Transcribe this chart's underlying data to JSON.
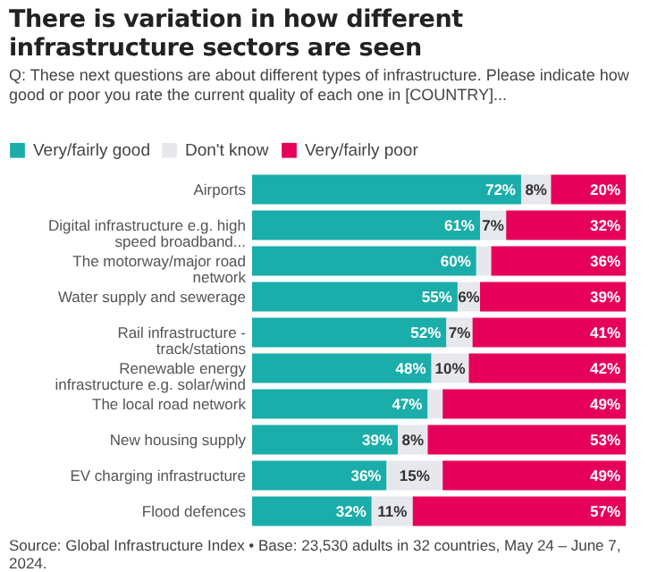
{
  "chart_data": {
    "type": "bar",
    "orientation": "horizontal",
    "stacked": true,
    "title": "There is variation in how different infrastructure sectors are seen",
    "subtitle": "Q: These next questions are about different types of infrastructure. Please indicate how good or poor you rate the current quality of each one in [COUNTRY]...",
    "categories": [
      "Airports",
      "Digital infrastructure e.g. high speed broadband...",
      "The motorway/major road network",
      "Water supply and sewerage",
      "Rail infrastructure - track/stations",
      "Renewable energy infrastructure e.g. solar/wind",
      "The local road network",
      "New housing supply",
      "EV charging infrastructure",
      "Flood defences"
    ],
    "series": [
      {
        "name": "Very/fairly good",
        "color": "#1aada9",
        "values": [
          72,
          61,
          60,
          55,
          52,
          48,
          47,
          39,
          36,
          32
        ],
        "value_labels": [
          "72%",
          "61%",
          "60%",
          "55%",
          "52%",
          "48%",
          "47%",
          "39%",
          "36%",
          "32%"
        ]
      },
      {
        "name": "Don't know",
        "color": "#e6e8ee",
        "values": [
          8,
          7,
          4,
          6,
          7,
          10,
          4,
          8,
          15,
          11
        ],
        "value_labels": [
          "8%",
          "7%",
          null,
          "6%",
          "7%",
          "10%",
          null,
          "8%",
          "15%",
          "11%"
        ]
      },
      {
        "name": "Very/fairly poor",
        "color": "#e6005a",
        "values": [
          20,
          32,
          36,
          39,
          41,
          42,
          49,
          53,
          49,
          57
        ],
        "value_labels": [
          "20%",
          "32%",
          "36%",
          "39%",
          "41%",
          "42%",
          "49%",
          "53%",
          "49%",
          "57%"
        ]
      }
    ],
    "legend": "top left",
    "annotations": [
      "Source: Global Infrastructure Index • Base: 23,530 adults in 32 countries, May 24 – June 7, 2024."
    ]
  }
}
